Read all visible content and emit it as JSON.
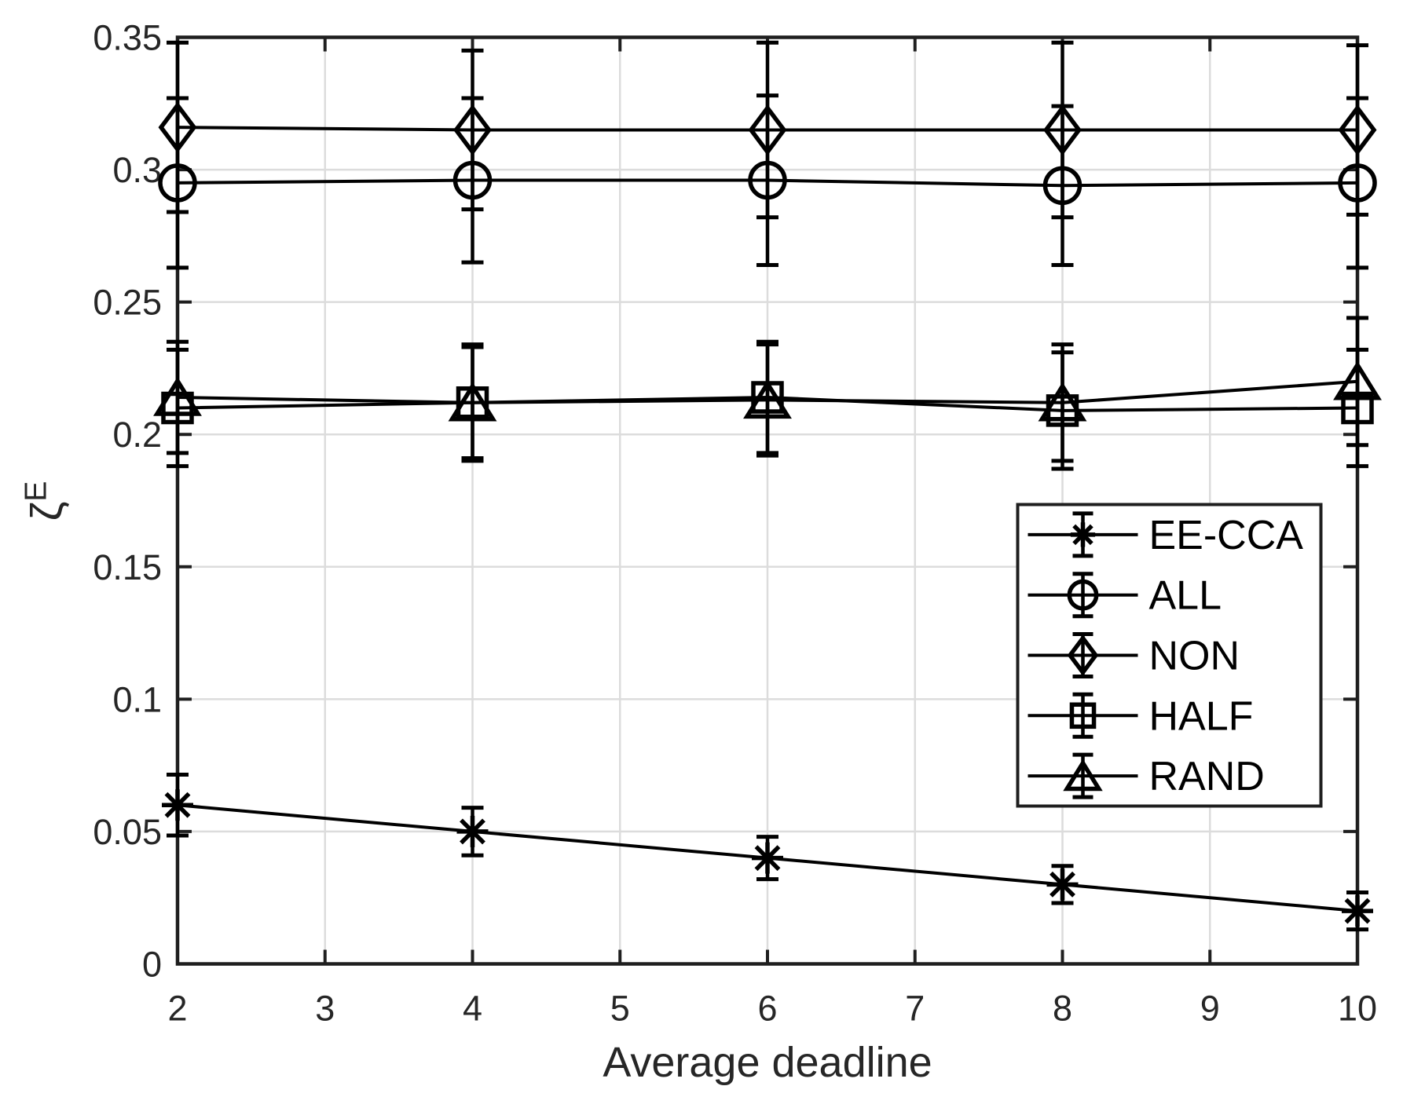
{
  "chart_data": {
    "type": "line",
    "title": "",
    "xlabel": "Average deadline",
    "ylabel": {
      "base": "ζ",
      "superscript": "E"
    },
    "x": [
      2,
      4,
      6,
      8,
      10
    ],
    "xlim": [
      2,
      10
    ],
    "ylim": [
      0,
      0.35
    ],
    "xticks": [
      2,
      3,
      4,
      5,
      6,
      7,
      8,
      9,
      10
    ],
    "xtick_labels": [
      "2",
      "3",
      "4",
      "5",
      "6",
      "7",
      "8",
      "9",
      "10"
    ],
    "yticks": [
      0,
      0.05,
      0.1,
      0.15,
      0.2,
      0.25,
      0.3,
      0.35
    ],
    "ytick_labels": [
      "0",
      "0.05",
      "0.1",
      "0.15",
      "0.2",
      "0.25",
      "0.3",
      "0.35"
    ],
    "grid": true,
    "series": [
      {
        "name": "EE-CCA",
        "marker": "asterisk",
        "values": [
          0.06,
          0.05,
          0.04,
          0.03,
          0.02
        ],
        "yerr": [
          0.0115,
          0.009,
          0.008,
          0.007,
          0.007
        ]
      },
      {
        "name": "ALL",
        "marker": "circle",
        "values": [
          0.295,
          0.296,
          0.296,
          0.294,
          0.295
        ],
        "yerr": [
          0.032,
          0.031,
          0.032,
          0.03,
          0.032
        ]
      },
      {
        "name": "NON",
        "marker": "diamond",
        "values": [
          0.316,
          0.315,
          0.315,
          0.315,
          0.315
        ],
        "yerr": [
          0.032,
          0.03,
          0.033,
          0.033,
          0.032
        ]
      },
      {
        "name": "HALF",
        "marker": "square",
        "values": [
          0.21,
          0.212,
          0.214,
          0.209,
          0.21
        ],
        "yerr": [
          0.022,
          0.021,
          0.021,
          0.022,
          0.022
        ]
      },
      {
        "name": "RAND",
        "marker": "triangle-up",
        "values": [
          0.214,
          0.212,
          0.213,
          0.212,
          0.22
        ],
        "yerr": [
          0.021,
          0.022,
          0.021,
          0.022,
          0.024
        ]
      }
    ],
    "legend": {
      "location": "inside-lower-right",
      "labels": [
        "EE-CCA",
        "ALL",
        "NON",
        "HALF",
        "RAND"
      ]
    },
    "colors": {
      "series": "#000000",
      "grid": "#dcdcdc",
      "axis": "#1f1f1f",
      "text": "#262626",
      "background": "#ffffff"
    }
  }
}
